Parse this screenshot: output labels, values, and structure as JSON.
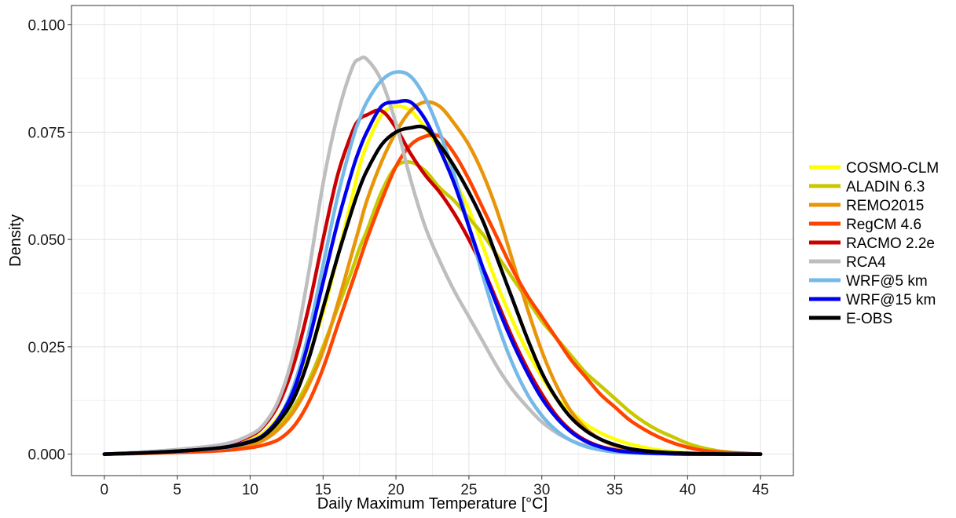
{
  "chart_data": {
    "type": "line",
    "title": "",
    "xlabel": "Daily Maximum Temperature [°C]",
    "ylabel": "Density",
    "xlim": [
      -2.25,
      47.25
    ],
    "ylim": [
      -0.005,
      0.1045
    ],
    "x_ticks": [
      0,
      5,
      10,
      15,
      20,
      25,
      30,
      35,
      40,
      45
    ],
    "x_tick_labels": [
      "0",
      "5",
      "10",
      "15",
      "20",
      "25",
      "30",
      "35",
      "40",
      "45"
    ],
    "y_ticks": [
      0,
      0.025,
      0.05,
      0.075,
      0.1
    ],
    "y_tick_labels": [
      "0.000",
      "0.025",
      "0.050",
      "0.075",
      "0.100"
    ],
    "grid": true,
    "legend_position": "right",
    "x": [
      0,
      4,
      8,
      10,
      11,
      12,
      13,
      14,
      15,
      16,
      17,
      17.5,
      18,
      19,
      20,
      21,
      22,
      23,
      24,
      25,
      26,
      27,
      28,
      29,
      30,
      31,
      32,
      33,
      34,
      35,
      36,
      37,
      38,
      39,
      40,
      41,
      42,
      43,
      45
    ],
    "series": [
      {
        "name": "COSMO-CLM",
        "color": "#ffff00",
        "values": [
          0,
          0.0006,
          0.0018,
          0.0034,
          0.0052,
          0.009,
          0.015,
          0.023,
          0.033,
          0.046,
          0.06,
          0.067,
          0.072,
          0.079,
          0.081,
          0.08,
          0.076,
          0.071,
          0.064,
          0.057,
          0.048,
          0.039,
          0.031,
          0.024,
          0.018,
          0.013,
          0.01,
          0.007,
          0.005,
          0.0035,
          0.0024,
          0.0016,
          0.001,
          0.0006,
          0.0003,
          0.0002,
          0.0001,
          5e-05,
          0
        ]
      },
      {
        "name": "ALADIN 6.3",
        "color": "#c8c800",
        "values": [
          0,
          0.0005,
          0.0014,
          0.0025,
          0.0038,
          0.0065,
          0.011,
          0.017,
          0.025,
          0.034,
          0.043,
          0.048,
          0.052,
          0.061,
          0.067,
          0.068,
          0.066,
          0.062,
          0.059,
          0.055,
          0.051,
          0.046,
          0.041,
          0.036,
          0.031,
          0.027,
          0.023,
          0.019,
          0.016,
          0.013,
          0.01,
          0.0075,
          0.0055,
          0.004,
          0.0025,
          0.0015,
          0.0008,
          0.0004,
          0
        ]
      },
      {
        "name": "REMO2015",
        "color": "#e8950a",
        "values": [
          0,
          0.0004,
          0.0012,
          0.0022,
          0.0034,
          0.006,
          0.01,
          0.016,
          0.024,
          0.035,
          0.047,
          0.053,
          0.059,
          0.068,
          0.075,
          0.08,
          0.082,
          0.081,
          0.077,
          0.072,
          0.065,
          0.056,
          0.045,
          0.034,
          0.024,
          0.016,
          0.01,
          0.006,
          0.0035,
          0.002,
          0.0011,
          0.0006,
          0.0003,
          0.0002,
          0.0001,
          5e-05,
          0,
          0,
          0
        ]
      },
      {
        "name": "RegCM 4.6",
        "color": "#ff4400",
        "values": [
          0,
          0.0003,
          0.0008,
          0.0015,
          0.0022,
          0.0035,
          0.0065,
          0.012,
          0.02,
          0.03,
          0.04,
          0.045,
          0.05,
          0.059,
          0.067,
          0.072,
          0.074,
          0.074,
          0.07,
          0.064,
          0.057,
          0.05,
          0.043,
          0.037,
          0.032,
          0.027,
          0.022,
          0.018,
          0.014,
          0.011,
          0.008,
          0.0058,
          0.004,
          0.0026,
          0.0016,
          0.0009,
          0.0005,
          0.0003,
          0
        ]
      },
      {
        "name": "RACMO 2.2e",
        "color": "#cc0000",
        "values": [
          0,
          0.0007,
          0.002,
          0.0042,
          0.0068,
          0.012,
          0.021,
          0.034,
          0.05,
          0.065,
          0.075,
          0.078,
          0.079,
          0.08,
          0.076,
          0.07,
          0.065,
          0.061,
          0.056,
          0.05,
          0.043,
          0.035,
          0.027,
          0.02,
          0.014,
          0.009,
          0.0055,
          0.0032,
          0.0018,
          0.001,
          0.0005,
          0.0003,
          0.0002,
          0.0001,
          5e-05,
          0,
          0,
          0,
          0
        ]
      },
      {
        "name": "RCA4",
        "color": "#bebebe",
        "values": [
          0,
          0.0008,
          0.0022,
          0.0045,
          0.0072,
          0.013,
          0.024,
          0.042,
          0.063,
          0.079,
          0.09,
          0.092,
          0.092,
          0.087,
          0.077,
          0.064,
          0.053,
          0.045,
          0.038,
          0.032,
          0.026,
          0.02,
          0.015,
          0.011,
          0.0075,
          0.005,
          0.0032,
          0.002,
          0.0012,
          0.0007,
          0.0004,
          0.0002,
          0.0001,
          5e-05,
          0,
          0,
          0,
          0,
          0
        ]
      },
      {
        "name": "WRF@5 km",
        "color": "#74b9e8",
        "values": [
          0,
          0.0005,
          0.0014,
          0.0028,
          0.0045,
          0.0085,
          0.016,
          0.028,
          0.044,
          0.06,
          0.073,
          0.078,
          0.082,
          0.087,
          0.089,
          0.088,
          0.083,
          0.075,
          0.065,
          0.053,
          0.041,
          0.03,
          0.021,
          0.014,
          0.009,
          0.0055,
          0.0032,
          0.0018,
          0.001,
          0.0005,
          0.0003,
          0.0002,
          0.0001,
          0,
          0,
          0,
          0,
          0,
          0
        ]
      },
      {
        "name": "WRF@15 km",
        "color": "#0000ee",
        "values": [
          0,
          0.0005,
          0.0015,
          0.003,
          0.0047,
          0.0085,
          0.015,
          0.026,
          0.04,
          0.054,
          0.066,
          0.071,
          0.075,
          0.081,
          0.082,
          0.082,
          0.078,
          0.071,
          0.063,
          0.053,
          0.043,
          0.034,
          0.026,
          0.019,
          0.013,
          0.0085,
          0.0052,
          0.003,
          0.0017,
          0.0009,
          0.0005,
          0.0003,
          0.0002,
          0.0001,
          0,
          0,
          0,
          0,
          0
        ]
      },
      {
        "name": "E-OBS",
        "color": "#000000",
        "values": [
          0,
          0.0005,
          0.0015,
          0.0028,
          0.0044,
          0.0078,
          0.013,
          0.022,
          0.034,
          0.046,
          0.057,
          0.062,
          0.066,
          0.072,
          0.075,
          0.076,
          0.076,
          0.072,
          0.067,
          0.061,
          0.054,
          0.045,
          0.036,
          0.027,
          0.019,
          0.013,
          0.0085,
          0.0055,
          0.0035,
          0.0022,
          0.0013,
          0.0008,
          0.0005,
          0.0003,
          0.0002,
          0.0001,
          5e-05,
          0,
          0
        ]
      }
    ]
  }
}
